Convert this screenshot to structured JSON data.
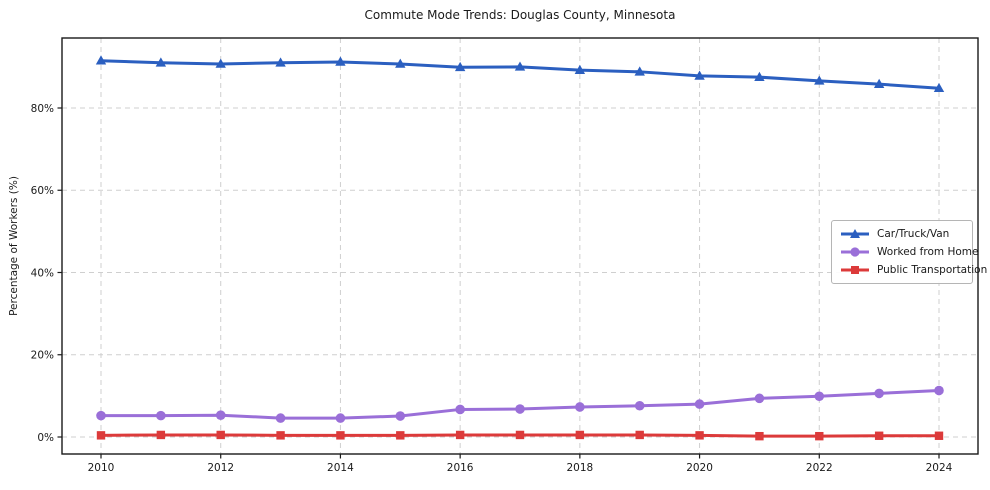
{
  "chart_data": {
    "type": "line",
    "title": "Commute Mode Trends: Douglas County, Minnesota",
    "xlabel": "",
    "ylabel": "Percentage of Workers (%)",
    "x": [
      2010,
      2011,
      2012,
      2013,
      2014,
      2015,
      2016,
      2017,
      2018,
      2019,
      2020,
      2021,
      2022,
      2023,
      2024
    ],
    "xticks": [
      2010,
      2012,
      2014,
      2016,
      2018,
      2020,
      2022,
      2024
    ],
    "xtick_labels": [
      "2010",
      "2012",
      "2014",
      "2016",
      "2018",
      "2020",
      "2022",
      "2024"
    ],
    "yticks": [
      0,
      20,
      40,
      60,
      80
    ],
    "ytick_labels": [
      "0%",
      "20%",
      "40%",
      "60%",
      "80%"
    ],
    "xlim": [
      2009.35,
      2024.65
    ],
    "ylim": [
      -4.1,
      97.0
    ],
    "grid": true,
    "grid_line_style": "dashed",
    "legend_position": "center-right-inside",
    "colors": {
      "grid": "#cfcfcf",
      "spine": "#1a1a1a",
      "text": "#1a1a1a",
      "background": "#ffffff"
    },
    "series": [
      {
        "name": "Car/Truck/Van",
        "color": "#2b5fc0",
        "marker": "triangle",
        "values": [
          91.5,
          91.0,
          90.7,
          91.0,
          91.2,
          90.7,
          89.9,
          90.0,
          89.2,
          88.8,
          87.8,
          87.5,
          86.6,
          85.8,
          84.8
        ]
      },
      {
        "name": "Worked from Home",
        "color": "#9a6fd8",
        "marker": "circle",
        "values": [
          5.2,
          5.2,
          5.3,
          4.6,
          4.6,
          5.1,
          6.7,
          6.8,
          7.3,
          7.6,
          8.0,
          9.4,
          9.9,
          10.6,
          11.3
        ]
      },
      {
        "name": "Public Transportation",
        "color": "#dc3a3a",
        "marker": "square",
        "values": [
          0.4,
          0.5,
          0.5,
          0.4,
          0.4,
          0.4,
          0.5,
          0.5,
          0.5,
          0.5,
          0.4,
          0.2,
          0.2,
          0.3,
          0.3
        ]
      }
    ]
  }
}
